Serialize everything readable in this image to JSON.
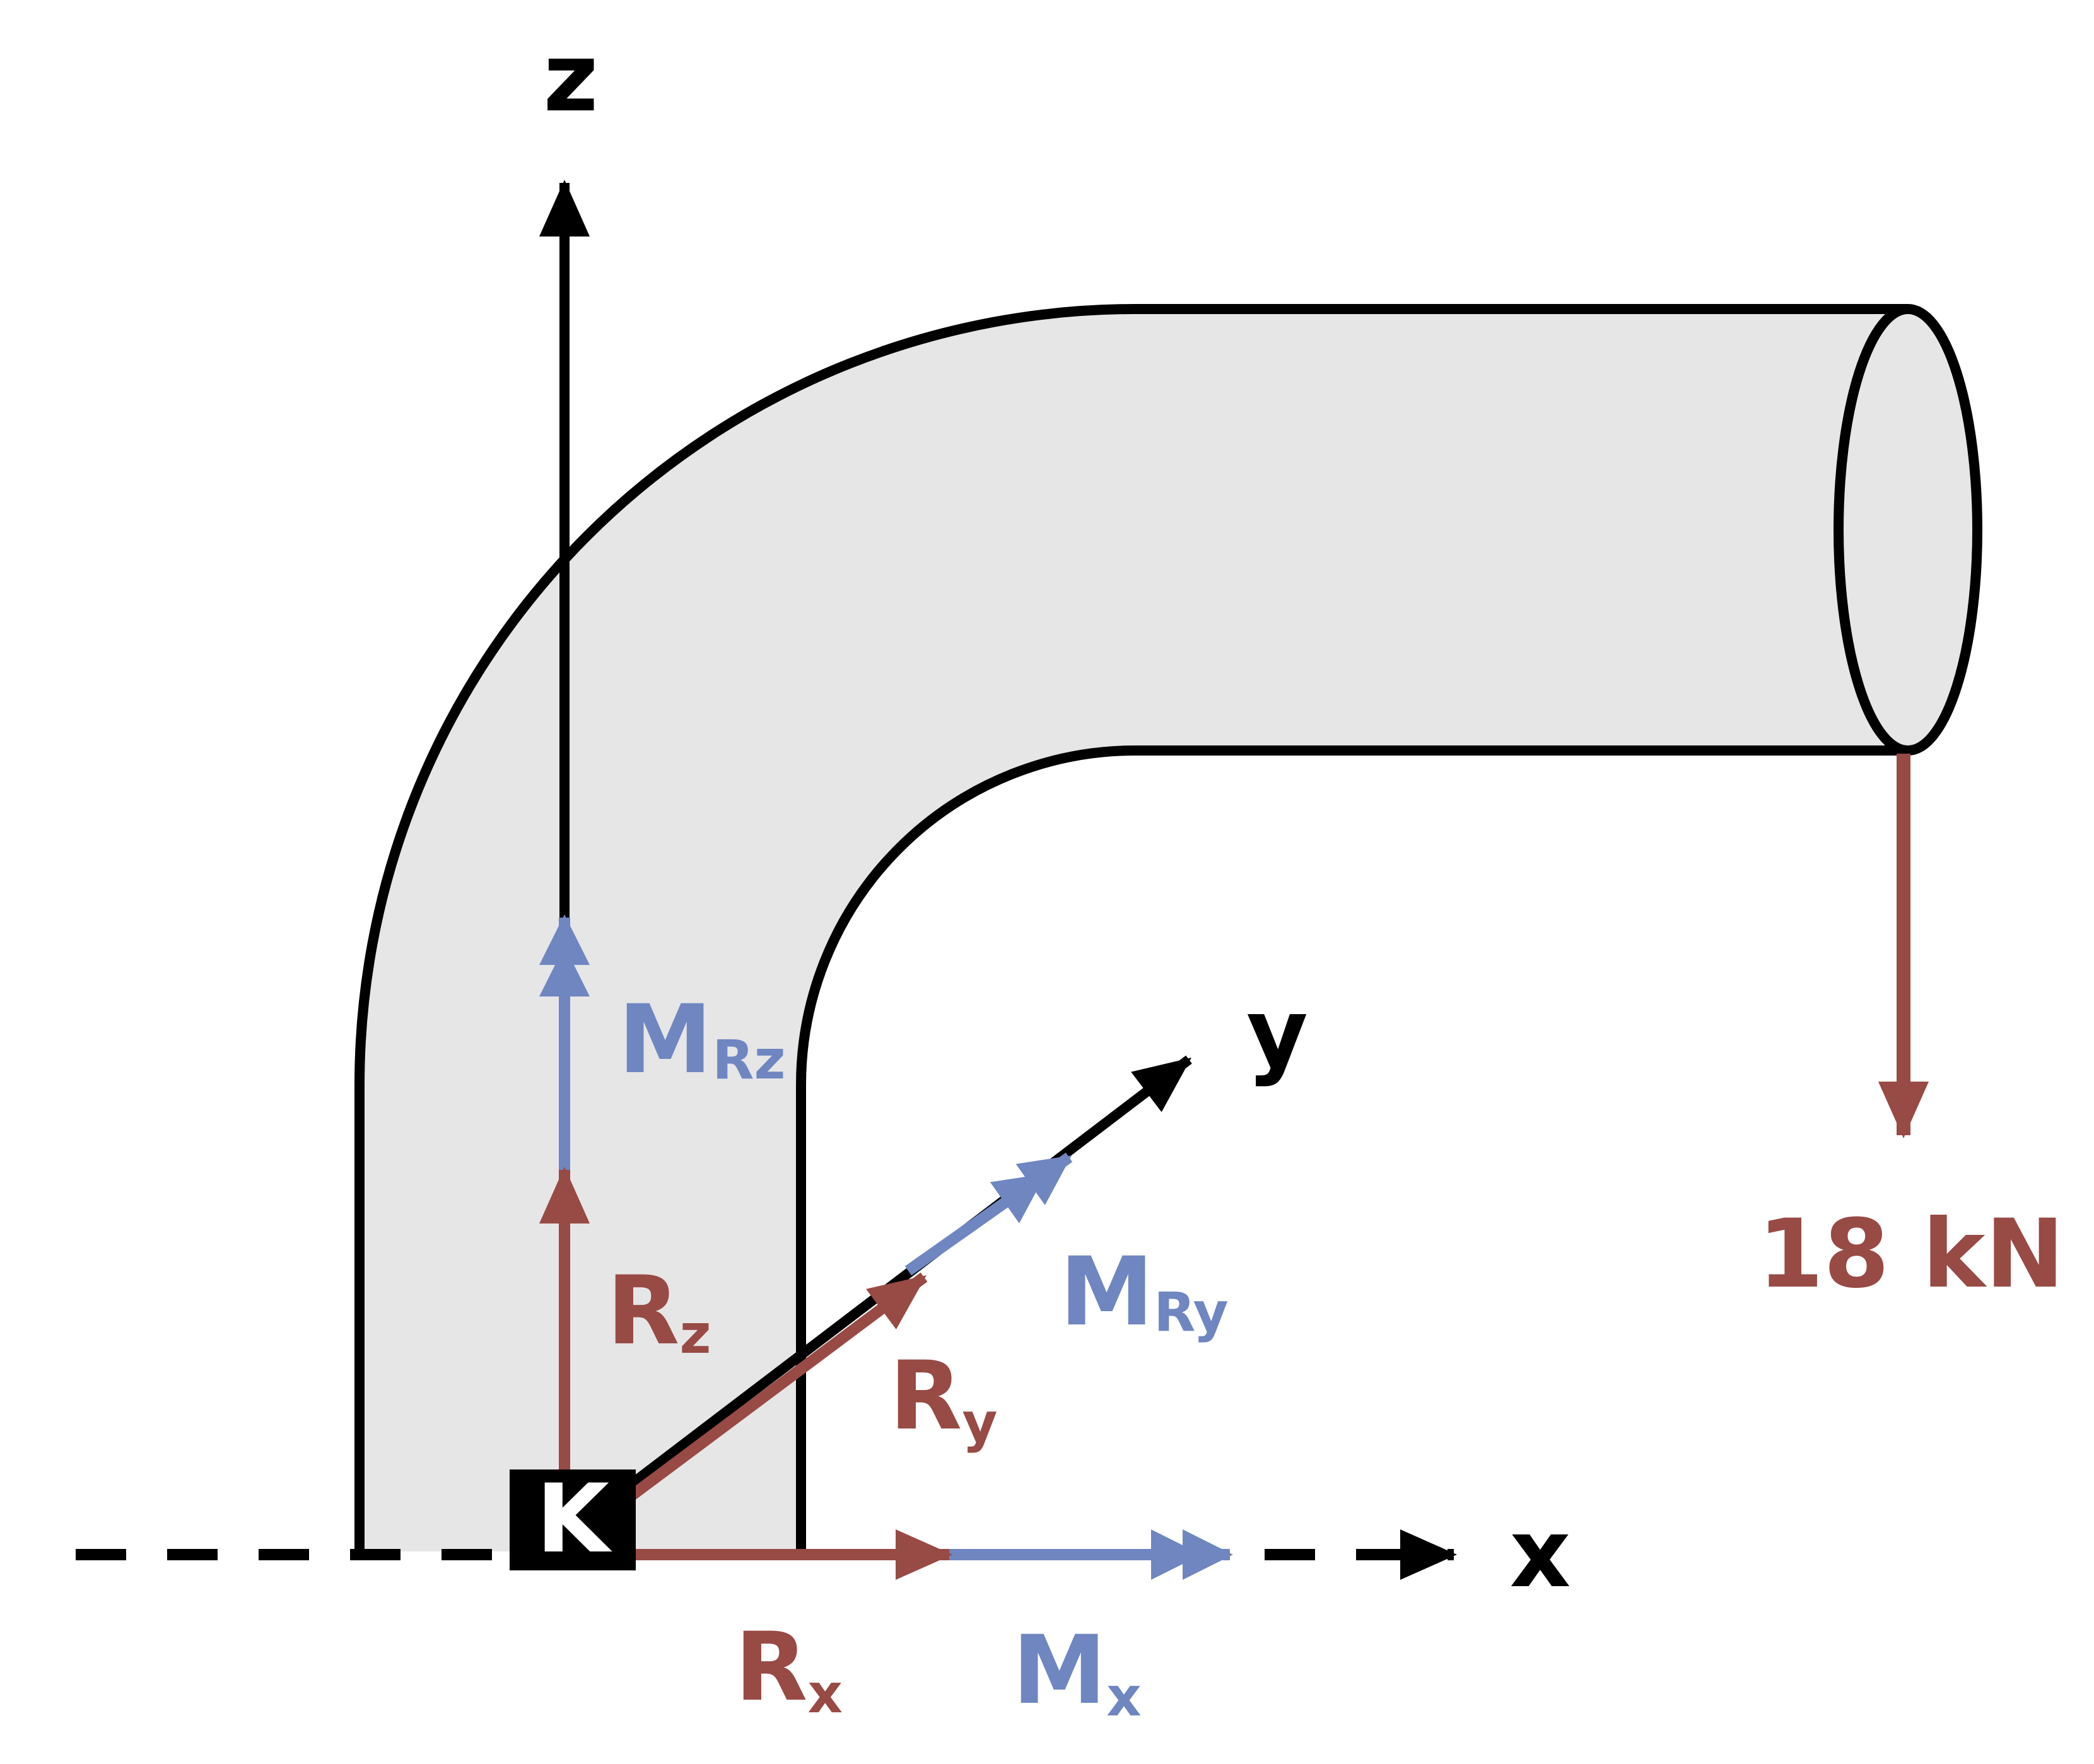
{
  "axes": {
    "x_label": "x",
    "y_label": "y",
    "z_label": "z"
  },
  "support": {
    "label": "K"
  },
  "load": {
    "value_label": "18 kN"
  },
  "reactions": {
    "Rx": {
      "main": "R",
      "sub": "x"
    },
    "Ry": {
      "main": "R",
      "sub": "y"
    },
    "Rz": {
      "main": "R",
      "sub": "z"
    }
  },
  "moments": {
    "Mx": {
      "main": "M",
      "sub": "x"
    },
    "MRy": {
      "main": "M",
      "sub": "Ry"
    },
    "MRz": {
      "main": "M",
      "sub": "Rz"
    }
  },
  "colors": {
    "force": "#984a45",
    "moment": "#6f86c1",
    "pipe_fill": "#e6e6e6",
    "outline": "#000000"
  }
}
